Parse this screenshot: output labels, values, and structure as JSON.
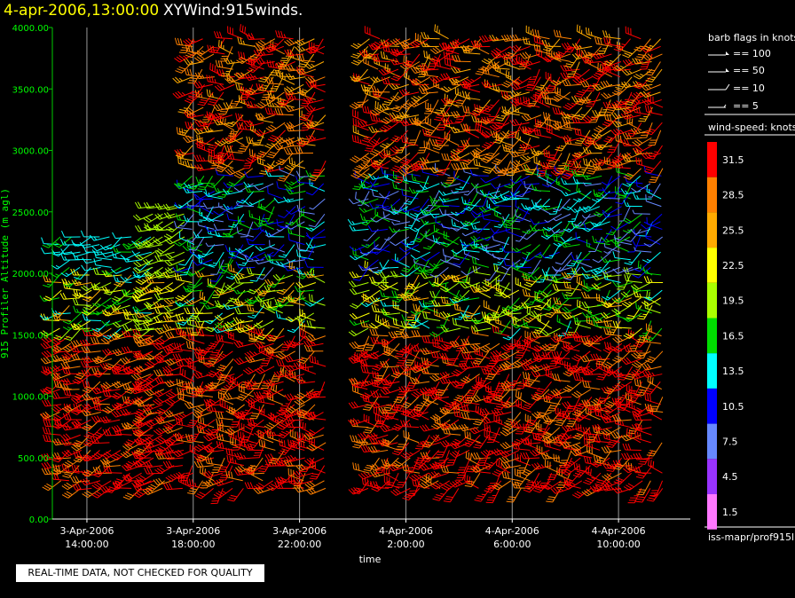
{
  "header": {
    "date": "4-apr-2006,13:00:00",
    "name": "XYWind:915winds."
  },
  "notice": "REAL-TIME DATA, NOT CHECKED FOR QUALITY",
  "legend": {
    "flags_title": "barb flags in knots",
    "flags": [
      {
        "label": "== 100",
        "knots": 100
      },
      {
        "label": "== 50",
        "knots": 50
      },
      {
        "label": "== 10",
        "knots": 10
      },
      {
        "label": "== 5",
        "knots": 5
      }
    ],
    "speed_title": "wind-speed: knots",
    "speed_bins": [
      {
        "label": "31.5",
        "color": "#ff0000"
      },
      {
        "label": "28.5",
        "color": "#ff8000"
      },
      {
        "label": "25.5",
        "color": "#ffaa00"
      },
      {
        "label": "22.5",
        "color": "#ffff00"
      },
      {
        "label": "19.5",
        "color": "#aaff00"
      },
      {
        "label": "16.5",
        "color": "#00dd00"
      },
      {
        "label": "13.5",
        "color": "#00ffff"
      },
      {
        "label": "10.5",
        "color": "#0000ff"
      },
      {
        "label": "7.5",
        "color": "#6688ff"
      },
      {
        "label": "4.5",
        "color": "#9933ff"
      },
      {
        "label": "1.5",
        "color": "#ff77ff"
      }
    ],
    "source": "iss-mapr/prof915l"
  },
  "chart_data": {
    "type": "scatter",
    "ylabel": "915 Profiler Altitude (m agl)",
    "xlabel": "time",
    "ylim": [
      0,
      4000
    ],
    "yticks": [
      "0.00",
      "500.00",
      "1000.00",
      "1500.00",
      "2000.00",
      "2500.00",
      "3000.00",
      "3500.00",
      "4000.00"
    ],
    "xlim_hours": [
      12.7,
      36.7
    ],
    "xticks": [
      {
        "date": "3-Apr-2006",
        "time": "14:00:00",
        "hour": 14
      },
      {
        "date": "3-Apr-2006",
        "time": "18:00:00",
        "hour": 18
      },
      {
        "date": "3-Apr-2006",
        "time": "22:00:00",
        "hour": 22
      },
      {
        "date": "4-Apr-2006",
        "time": "2:00:00",
        "hour": 26
      },
      {
        "date": "4-Apr-2006",
        "time": "6:00:00",
        "hour": 30
      },
      {
        "date": "4-Apr-2006",
        "time": "10:00:00",
        "hour": 34
      }
    ],
    "grid": true,
    "series": [
      {
        "name": "wind barbs",
        "time_hours": [
          13.0,
          16.5
        ],
        "alt_m": [
          250,
          2300
        ],
        "speed_knots": [
          12,
          30
        ],
        "dir_deg": [
          220,
          280
        ]
      },
      {
        "name": "wind barbs",
        "time_hours": [
          16.5,
          18.0
        ],
        "alt_m": [
          250,
          2600
        ],
        "speed_knots": [
          18,
          32
        ],
        "dir_deg": [
          230,
          270
        ]
      },
      {
        "name": "wind barbs",
        "time_hours": [
          18.0,
          23.0
        ],
        "alt_m": [
          250,
          3950
        ],
        "speed_knots": [
          5,
          35
        ],
        "dir_deg": [
          200,
          300
        ]
      },
      {
        "name": "wind barbs",
        "time_hours": [
          24.6,
          36.0
        ],
        "alt_m": [
          250,
          3950
        ],
        "speed_knots": [
          5,
          35
        ],
        "dir_deg": [
          200,
          300
        ]
      }
    ]
  }
}
